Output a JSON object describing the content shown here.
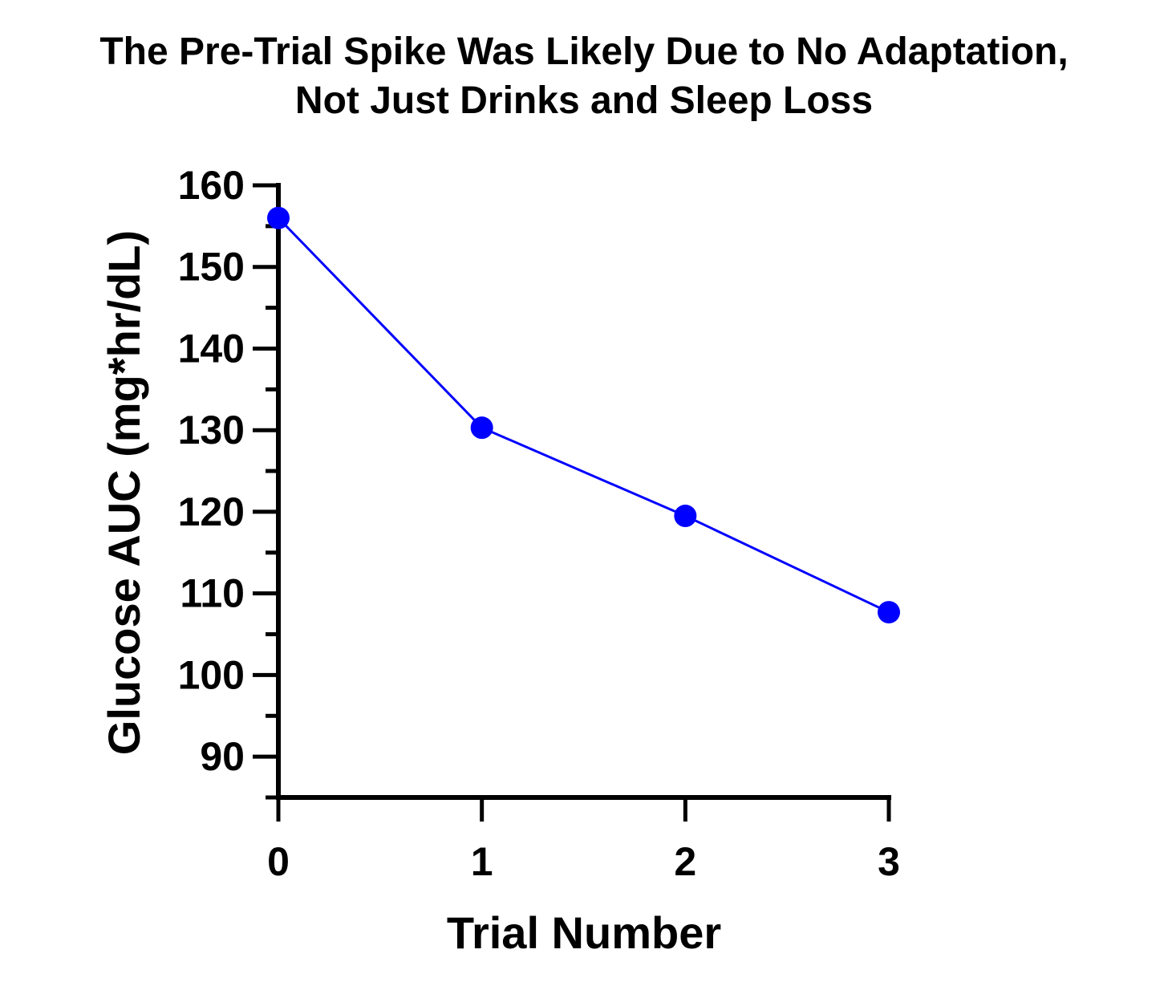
{
  "chart_data": {
    "type": "line",
    "title_lines": [
      "The Pre-Trial Spike Was Likely Due to No Adaptation,",
      "Not Just Drinks and Sleep Loss"
    ],
    "xlabel": "Trial Number",
    "ylabel": "Glucose AUC (mg*hr/dL)",
    "x": [
      0,
      1,
      2,
      3
    ],
    "series": [
      {
        "values": [
          156,
          130.3,
          119.5,
          107.7
        ]
      }
    ],
    "xlim": [
      0,
      3
    ],
    "ylim": [
      85,
      160
    ],
    "x_ticks": [
      0,
      1,
      2,
      3
    ],
    "x_tick_labels": [
      "0",
      "1",
      "2",
      "3"
    ],
    "y_ticks": [
      90,
      100,
      110,
      120,
      130,
      140,
      150,
      160
    ],
    "y_tick_labels": [
      "90",
      "100",
      "110",
      "120",
      "130",
      "140",
      "150",
      "160"
    ],
    "y_minor_tick_step": 5,
    "grid": false,
    "legend": "none",
    "colors": {
      "series": "#0000FF",
      "axis": "#000000",
      "text": "#000000"
    }
  }
}
